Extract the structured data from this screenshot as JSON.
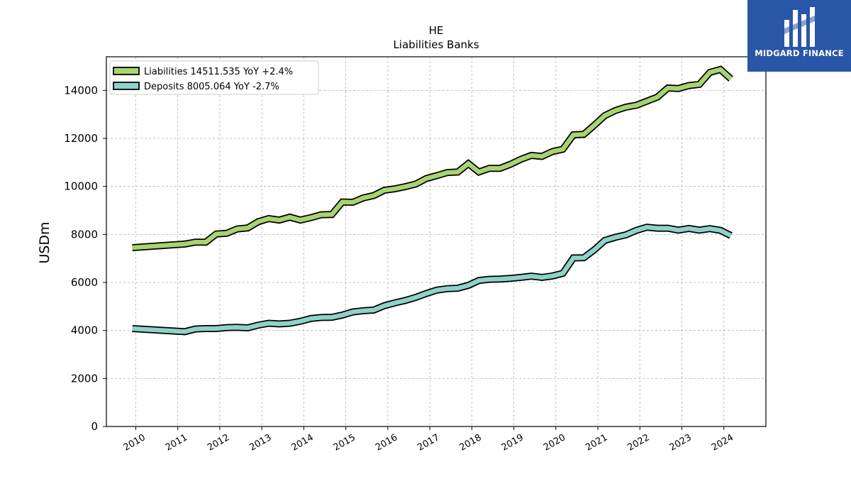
{
  "brand": {
    "name": "MIDGARD FINANCE",
    "color": "#2a56a8"
  },
  "chart_data": {
    "type": "line",
    "title": "HE",
    "subtitle": "Liabilities Banks",
    "xlabel": "",
    "ylabel": "USDm",
    "ylim": [
      0,
      15400
    ],
    "xlim": [
      2009.3,
      2025.0
    ],
    "yticks": [
      0,
      2000,
      4000,
      6000,
      8000,
      10000,
      12000,
      14000
    ],
    "xticks": [
      "2010",
      "2011",
      "2012",
      "2013",
      "2014",
      "2015",
      "2016",
      "2017",
      "2018",
      "2019",
      "2020",
      "2021",
      "2022",
      "2023",
      "2024"
    ],
    "grid": true,
    "legend_position": "top-left",
    "series": [
      {
        "name": "Liabilities",
        "legend": "Liabilities  14511.535 YoY +2.4%",
        "color": "#a7d46f",
        "points": [
          [
            "2009-12",
            7450
          ],
          [
            "2011-03",
            7600
          ],
          [
            "2011-06",
            7680
          ],
          [
            "2011-09",
            7680
          ],
          [
            "2011-12",
            8020
          ],
          [
            "2012-03",
            8050
          ],
          [
            "2012-06",
            8230
          ],
          [
            "2012-09",
            8270
          ],
          [
            "2012-12",
            8530
          ],
          [
            "2013-03",
            8660
          ],
          [
            "2013-06",
            8600
          ],
          [
            "2013-09",
            8720
          ],
          [
            "2013-12",
            8600
          ],
          [
            "2014-03",
            8700
          ],
          [
            "2014-06",
            8820
          ],
          [
            "2014-09",
            8830
          ],
          [
            "2014-12",
            9350
          ],
          [
            "2015-03",
            9340
          ],
          [
            "2015-06",
            9520
          ],
          [
            "2015-09",
            9620
          ],
          [
            "2015-12",
            9840
          ],
          [
            "2016-03",
            9900
          ],
          [
            "2016-06",
            9990
          ],
          [
            "2016-09",
            10100
          ],
          [
            "2016-12",
            10330
          ],
          [
            "2017-03",
            10450
          ],
          [
            "2017-06",
            10580
          ],
          [
            "2017-09",
            10600
          ],
          [
            "2017-12",
            10950
          ],
          [
            "2018-03",
            10600
          ],
          [
            "2018-06",
            10750
          ],
          [
            "2018-09",
            10750
          ],
          [
            "2018-12",
            10920
          ],
          [
            "2019-03",
            11130
          ],
          [
            "2019-06",
            11290
          ],
          [
            "2019-09",
            11250
          ],
          [
            "2019-12",
            11450
          ],
          [
            "2020-03",
            11550
          ],
          [
            "2020-06",
            12150
          ],
          [
            "2020-09",
            12170
          ],
          [
            "2020-12",
            12550
          ],
          [
            "2021-03",
            12950
          ],
          [
            "2021-06",
            13160
          ],
          [
            "2021-09",
            13300
          ],
          [
            "2021-12",
            13380
          ],
          [
            "2022-03",
            13550
          ],
          [
            "2022-06",
            13720
          ],
          [
            "2022-09",
            14100
          ],
          [
            "2022-12",
            14080
          ],
          [
            "2023-03",
            14200
          ],
          [
            "2023-06",
            14250
          ],
          [
            "2023-09",
            14750
          ],
          [
            "2023-12",
            14870
          ],
          [
            "2024-03",
            14480
          ]
        ]
      },
      {
        "name": "Deposits",
        "legend": "Deposits  8005.064 YoY -2.7%",
        "color": "#8dd3c7",
        "points": [
          [
            "2009-12",
            4080
          ],
          [
            "2011-03",
            3950
          ],
          [
            "2011-06",
            4060
          ],
          [
            "2011-09",
            4080
          ],
          [
            "2011-12",
            4080
          ],
          [
            "2012-03",
            4120
          ],
          [
            "2012-06",
            4130
          ],
          [
            "2012-09",
            4110
          ],
          [
            "2012-12",
            4220
          ],
          [
            "2013-03",
            4300
          ],
          [
            "2013-06",
            4270
          ],
          [
            "2013-09",
            4300
          ],
          [
            "2013-12",
            4380
          ],
          [
            "2014-03",
            4500
          ],
          [
            "2014-06",
            4540
          ],
          [
            "2014-09",
            4550
          ],
          [
            "2014-12",
            4640
          ],
          [
            "2015-03",
            4770
          ],
          [
            "2015-06",
            4820
          ],
          [
            "2015-09",
            4850
          ],
          [
            "2015-12",
            5030
          ],
          [
            "2016-03",
            5150
          ],
          [
            "2016-06",
            5250
          ],
          [
            "2016-09",
            5380
          ],
          [
            "2016-12",
            5540
          ],
          [
            "2017-03",
            5680
          ],
          [
            "2017-06",
            5740
          ],
          [
            "2017-09",
            5760
          ],
          [
            "2017-12",
            5880
          ],
          [
            "2018-03",
            6080
          ],
          [
            "2018-06",
            6130
          ],
          [
            "2018-09",
            6140
          ],
          [
            "2018-12",
            6170
          ],
          [
            "2019-03",
            6210
          ],
          [
            "2019-06",
            6260
          ],
          [
            "2019-09",
            6210
          ],
          [
            "2019-12",
            6270
          ],
          [
            "2020-03",
            6380
          ],
          [
            "2020-06",
            7020
          ],
          [
            "2020-09",
            7030
          ],
          [
            "2020-12",
            7360
          ],
          [
            "2021-03",
            7750
          ],
          [
            "2021-06",
            7880
          ],
          [
            "2021-09",
            7980
          ],
          [
            "2021-12",
            8170
          ],
          [
            "2022-03",
            8300
          ],
          [
            "2022-06",
            8260
          ],
          [
            "2022-09",
            8260
          ],
          [
            "2022-12",
            8180
          ],
          [
            "2023-03",
            8250
          ],
          [
            "2023-06",
            8180
          ],
          [
            "2023-09",
            8240
          ],
          [
            "2023-12",
            8170
          ],
          [
            "2024-03",
            7950
          ]
        ]
      }
    ]
  }
}
